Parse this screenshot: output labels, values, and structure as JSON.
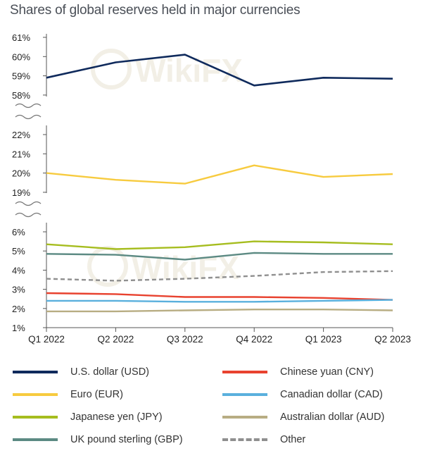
{
  "title": "Shares of global reserves held in major currencies",
  "colors": {
    "usd": "#0f2a5c",
    "eur": "#f7cb3f",
    "jpy": "#a6bd1f",
    "gbp": "#5c8a83",
    "cny": "#e8422f",
    "cad": "#5ab0dd",
    "aud": "#b8ad83",
    "other": "#8f8f8f",
    "axis": "#555555",
    "watermark": "#e9e3d3"
  },
  "watermark_text": "WikiFX",
  "chart_data": {
    "type": "line",
    "title": "Shares of global reserves held in major currencies",
    "categories": [
      "Q1 2022",
      "Q2 2022",
      "Q3 2022",
      "Q4 2022",
      "Q1 2023",
      "Q2 2023"
    ],
    "axis_breaks": true,
    "panels": [
      {
        "name": "top",
        "ylim": [
          58,
          61
        ],
        "ticks": [
          "61%",
          "60%",
          "59%",
          "58%"
        ],
        "tick_values": [
          61,
          60,
          59,
          58
        ]
      },
      {
        "name": "middle",
        "ylim": [
          19,
          22
        ],
        "ticks": [
          "22%",
          "21%",
          "20%",
          "19%"
        ],
        "tick_values": [
          22,
          21,
          20,
          19
        ]
      },
      {
        "name": "bottom",
        "ylim": [
          1,
          6
        ],
        "ticks": [
          "6%",
          "5%",
          "4%",
          "3%",
          "2%",
          "1%"
        ],
        "tick_values": [
          6,
          5,
          4,
          3,
          2,
          1
        ]
      }
    ],
    "series": [
      {
        "key": "usd",
        "name": "U.S. dollar (USD)",
        "panel": "top",
        "values": [
          58.9,
          59.7,
          60.1,
          58.5,
          58.9,
          58.85
        ]
      },
      {
        "key": "eur",
        "name": "Euro (EUR)",
        "panel": "middle",
        "values": [
          20.0,
          19.65,
          19.45,
          20.4,
          19.8,
          19.95
        ]
      },
      {
        "key": "jpy",
        "name": "Japanese yen (JPY)",
        "panel": "bottom",
        "values": [
          5.35,
          5.1,
          5.2,
          5.5,
          5.45,
          5.35
        ]
      },
      {
        "key": "gbp",
        "name": "UK pound sterling (GBP)",
        "panel": "bottom",
        "values": [
          4.85,
          4.8,
          4.55,
          4.9,
          4.85,
          4.85
        ]
      },
      {
        "key": "cny",
        "name": "Chinese yuan (CNY)",
        "panel": "bottom",
        "values": [
          2.8,
          2.75,
          2.6,
          2.6,
          2.55,
          2.45
        ]
      },
      {
        "key": "cad",
        "name": "Canadian dollar (CAD)",
        "panel": "bottom",
        "values": [
          2.4,
          2.4,
          2.35,
          2.35,
          2.4,
          2.45
        ]
      },
      {
        "key": "aud",
        "name": "Australian dollar (AUD)",
        "panel": "bottom",
        "values": [
          1.85,
          1.85,
          1.9,
          1.95,
          1.95,
          1.9
        ]
      },
      {
        "key": "other",
        "name": "Other",
        "panel": "bottom",
        "dashed": true,
        "values": [
          3.55,
          3.45,
          3.55,
          3.7,
          3.9,
          3.95
        ]
      }
    ],
    "legend": {
      "placement": "bottom",
      "left": [
        "usd",
        "eur",
        "jpy",
        "gbp"
      ],
      "right": [
        "cny",
        "cad",
        "aud",
        "other"
      ]
    }
  }
}
